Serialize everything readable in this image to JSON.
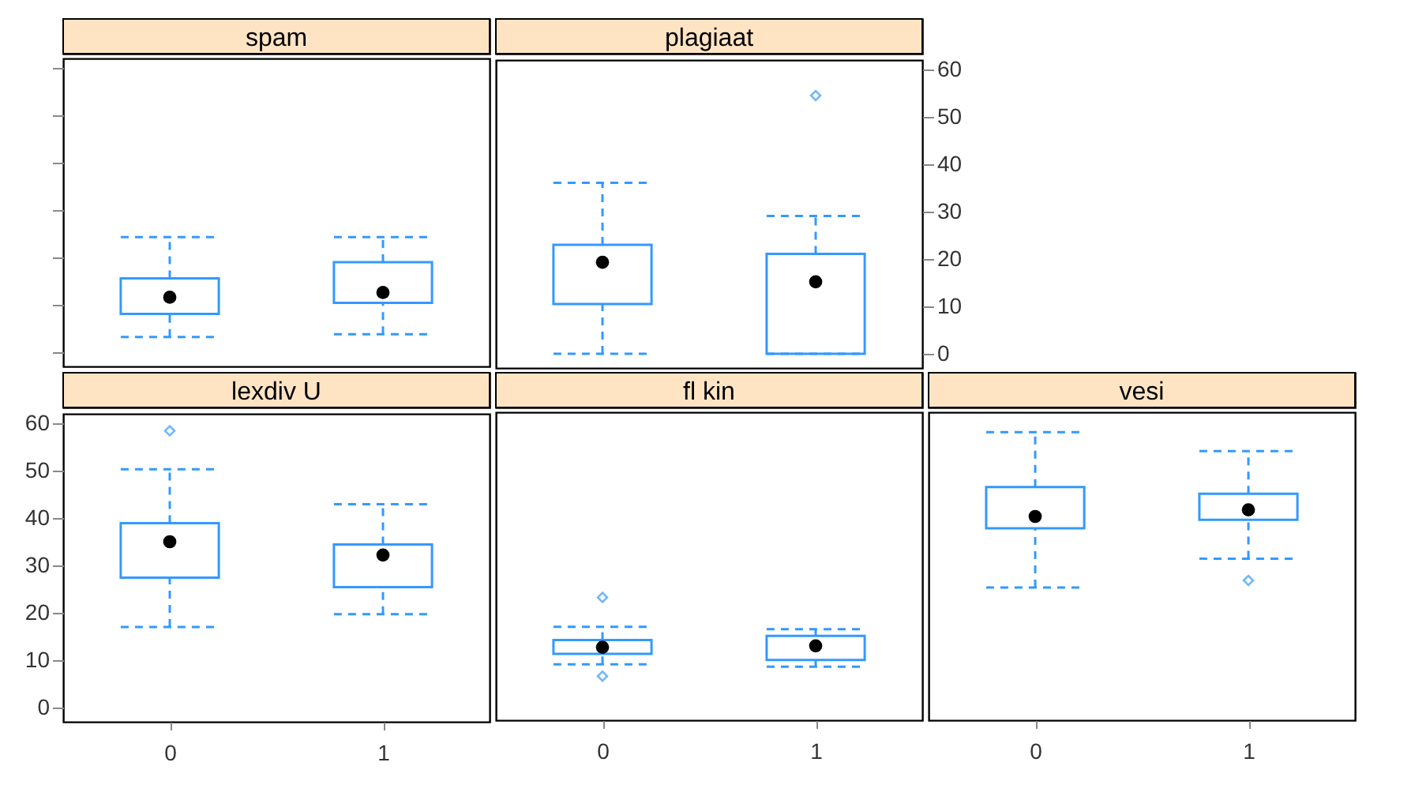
{
  "chart_data": [
    {
      "type": "box",
      "title": "spam",
      "categories": [
        "0",
        "1"
      ],
      "ylim": [
        -3,
        62
      ],
      "yticks": [
        0,
        10,
        20,
        30,
        40,
        50,
        60
      ],
      "tick_labels": false,
      "grid": false,
      "series": [
        {
          "color": "#3399ff",
          "line_style": "dashed",
          "boxes": [
            {
              "low": 3.2,
              "q1": 8.1,
              "median": 11.6,
              "q3": 15.6,
              "high": 24.3
            },
            {
              "low": 3.8,
              "q1": 10.4,
              "median": 12.6,
              "q3": 19,
              "high": 24.3
            }
          ]
        }
      ]
    },
    {
      "type": "box",
      "title": "plagiaat",
      "categories": [
        "0",
        "1"
      ],
      "ylim": [
        -3,
        62
      ],
      "yticks": [
        0,
        10,
        20,
        30,
        40,
        50,
        60
      ],
      "tick_labels": "y",
      "grid": false,
      "series": [
        {
          "color": "#3399ff",
          "line_style": "dashed",
          "boxes": [
            {
              "low": 0,
              "q1": 10.5,
              "median": 19.3,
              "q3": 23,
              "high": 36.1
            },
            {
              "low": 0,
              "q1": 0,
              "median": 15.2,
              "q3": 21.1,
              "high": 29.1,
              "outliers": [
                54.5
              ]
            }
          ]
        }
      ]
    },
    {
      "type": "box",
      "title": "lexdiv  U",
      "categories": [
        "0",
        "1"
      ],
      "ylim": [
        -3,
        62
      ],
      "yticks": [
        0,
        10,
        20,
        30,
        40,
        50,
        60
      ],
      "grid": false,
      "series": [
        {
          "color": "#3399ff",
          "line_style": "dashed",
          "boxes": [
            {
              "low": 17,
              "q1": 27.4,
              "median": 35,
              "q3": 38.9,
              "high": 50.3,
              "outliers": [
                58.4
              ]
            },
            {
              "low": 19.7,
              "q1": 25.4,
              "median": 32.2,
              "q3": 34.4,
              "high": 42.9
            }
          ]
        }
      ]
    },
    {
      "type": "box",
      "title": "fl  kin",
      "categories": [
        "0",
        "1"
      ],
      "ylim": [
        -3,
        62
      ],
      "yticks": [
        0,
        10,
        20,
        30,
        40,
        50,
        60
      ],
      "tick_labels": "x",
      "grid": false,
      "series": [
        {
          "color": "#3399ff",
          "line_style": "dashed",
          "boxes": [
            {
              "low": 8.8,
              "q1": 11,
              "median": 12.4,
              "q3": 13.9,
              "high": 16.7,
              "outliers": [
                22.9,
                6.3
              ]
            },
            {
              "low": 8.3,
              "q1": 9.7,
              "median": 12.7,
              "q3": 14.8,
              "high": 16.2
            }
          ]
        }
      ]
    },
    {
      "type": "box",
      "title": "vesi",
      "categories": [
        "0",
        "1"
      ],
      "ylim": [
        -3,
        62
      ],
      "yticks": [
        0,
        10,
        20,
        30,
        40,
        50,
        60
      ],
      "tick_labels": "x",
      "grid": false,
      "series": [
        {
          "color": "#3399ff",
          "line_style": "dashed",
          "boxes": [
            {
              "low": 25,
              "q1": 37.5,
              "median": 40,
              "q3": 46.2,
              "high": 57.8
            },
            {
              "low": 31.1,
              "q1": 39.3,
              "median": 41.4,
              "q3": 44.8,
              "high": 53.8,
              "outliers": [
                26.5
              ]
            }
          ]
        }
      ]
    }
  ]
}
